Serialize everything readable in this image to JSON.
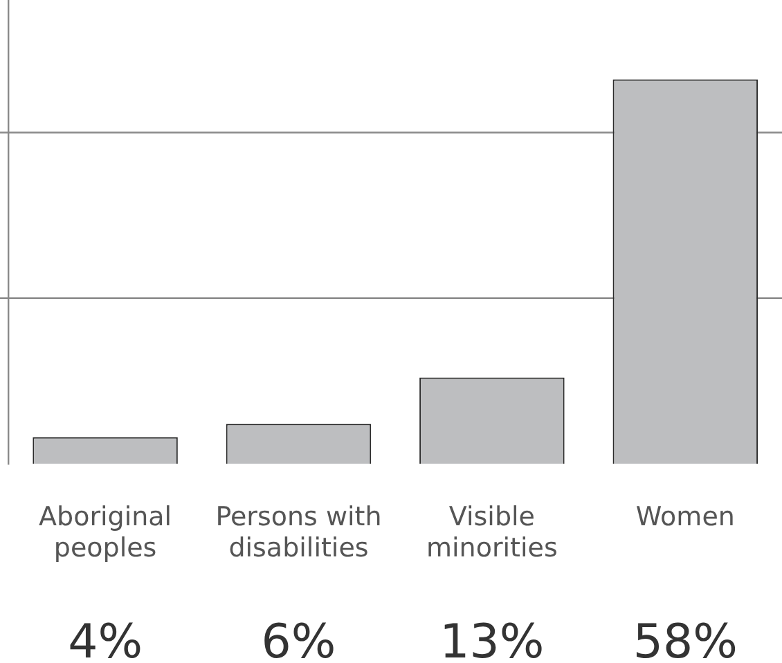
{
  "chart_data": {
    "type": "bar",
    "categories": [
      "Aboriginal peoples",
      "Persons with disabilities",
      "Visible minorities",
      "Women"
    ],
    "values": [
      4,
      6,
      13,
      58
    ],
    "value_labels": [
      "4%",
      "6%",
      "13%",
      "58%"
    ],
    "color": "#bdbec0",
    "ref_lines": [
      {
        "axis": "y",
        "value": 25,
        "color": "#8a8a8a"
      },
      {
        "axis": "y",
        "value": 50,
        "color": "#8a8a8a"
      }
    ],
    "legend": false,
    "tick_labels": "x"
  }
}
